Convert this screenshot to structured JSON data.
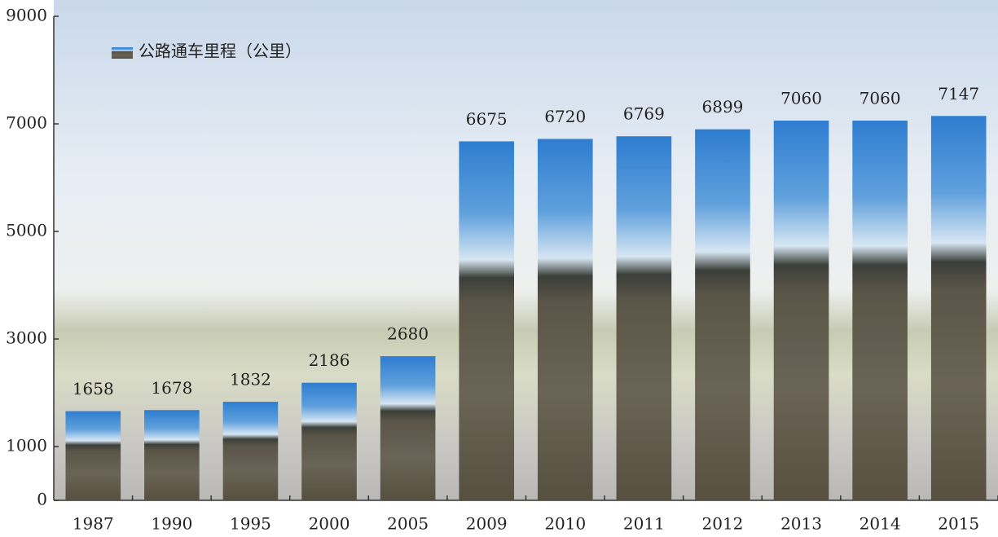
{
  "chart_data": {
    "type": "bar",
    "legend": "公路通车里程（公里）",
    "categories": [
      "1987",
      "1990",
      "1995",
      "2000",
      "2005",
      "2009",
      "2010",
      "2011",
      "2012",
      "2013",
      "2014",
      "2015"
    ],
    "values": [
      1658,
      1678,
      1832,
      2186,
      2680,
      6675,
      6720,
      6769,
      6899,
      7060,
      7060,
      7147
    ],
    "ylim": [
      0,
      9000
    ],
    "yticks": [
      0,
      1000,
      3000,
      5000,
      7000,
      9000
    ]
  }
}
